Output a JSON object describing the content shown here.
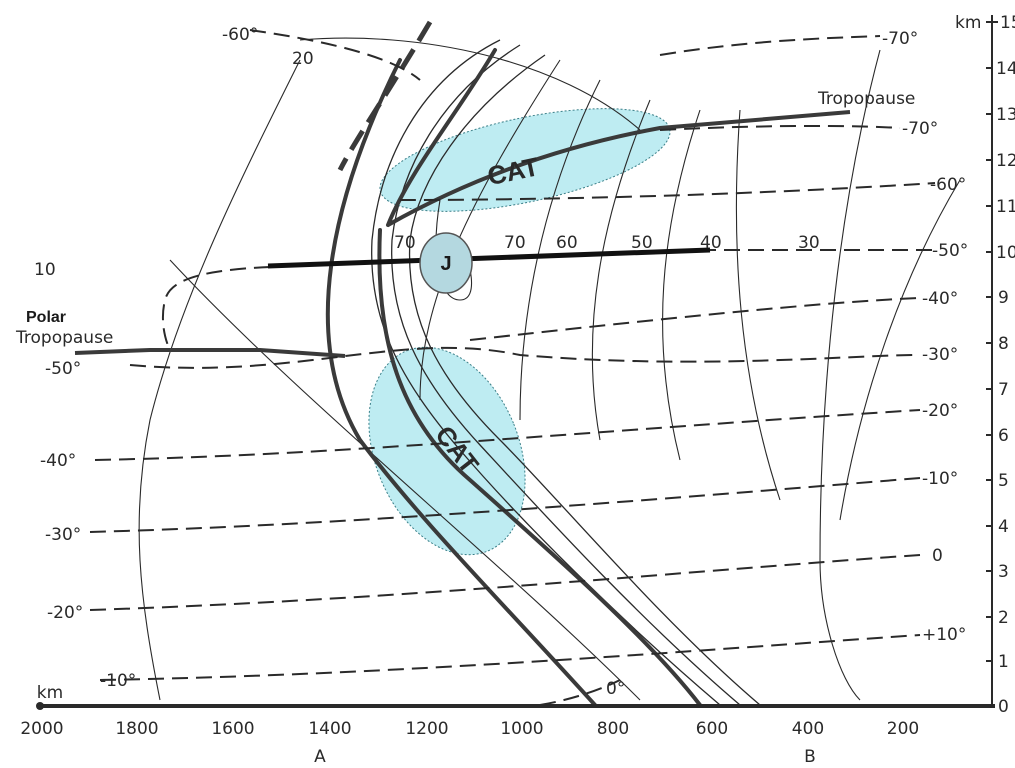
{
  "labels": {
    "top_minus60": "-60°",
    "top_20": "20",
    "top_minus70": "-70°",
    "tropopause_right": "Tropopause",
    "iso_minus70_right": "-70°",
    "iso_minus60_right": "-60°",
    "iso_minus50_right": "-50°",
    "iso_minus40_right": "-40°",
    "iso_minus30_right": "-30°",
    "iso_minus20_right": "-20°",
    "iso_minus10_right": "-10°",
    "iso_0_right": "0",
    "iso_plus10_right": "+10°",
    "iso_0_bottom": "0°",
    "left_10": "10",
    "polar": "Polar",
    "polar_tropopause": "Tropopause",
    "left_minus50": "-50°",
    "left_minus40": "-40°",
    "left_minus30": "-30°",
    "left_minus20": "-20°",
    "left_minus10": "-10°",
    "wind_70a": "70",
    "wind_70b": "70",
    "wind_60": "60",
    "wind_50": "50",
    "wind_40": "40",
    "wind_30": "30",
    "cat_top": "CAT",
    "cat_bottom": "CAT",
    "jet": "J",
    "km_left": "km",
    "km_right": "km",
    "point_a": "A",
    "point_b": "B"
  },
  "x_axis": {
    "ticks": [
      "2000",
      "1800",
      "1600",
      "1400",
      "1200",
      "1000",
      "800",
      "600",
      "400",
      "200"
    ]
  },
  "y_axis": {
    "ticks": [
      "0",
      "1",
      "2",
      "3",
      "4",
      "5",
      "6",
      "7",
      "8",
      "9",
      "10",
      "11",
      "12",
      "13",
      "14",
      "15"
    ]
  },
  "colors": {
    "ink": "#2a2a2a",
    "cat_fill": "#a8e6ee",
    "jet_fill": "#b4d8e0"
  }
}
